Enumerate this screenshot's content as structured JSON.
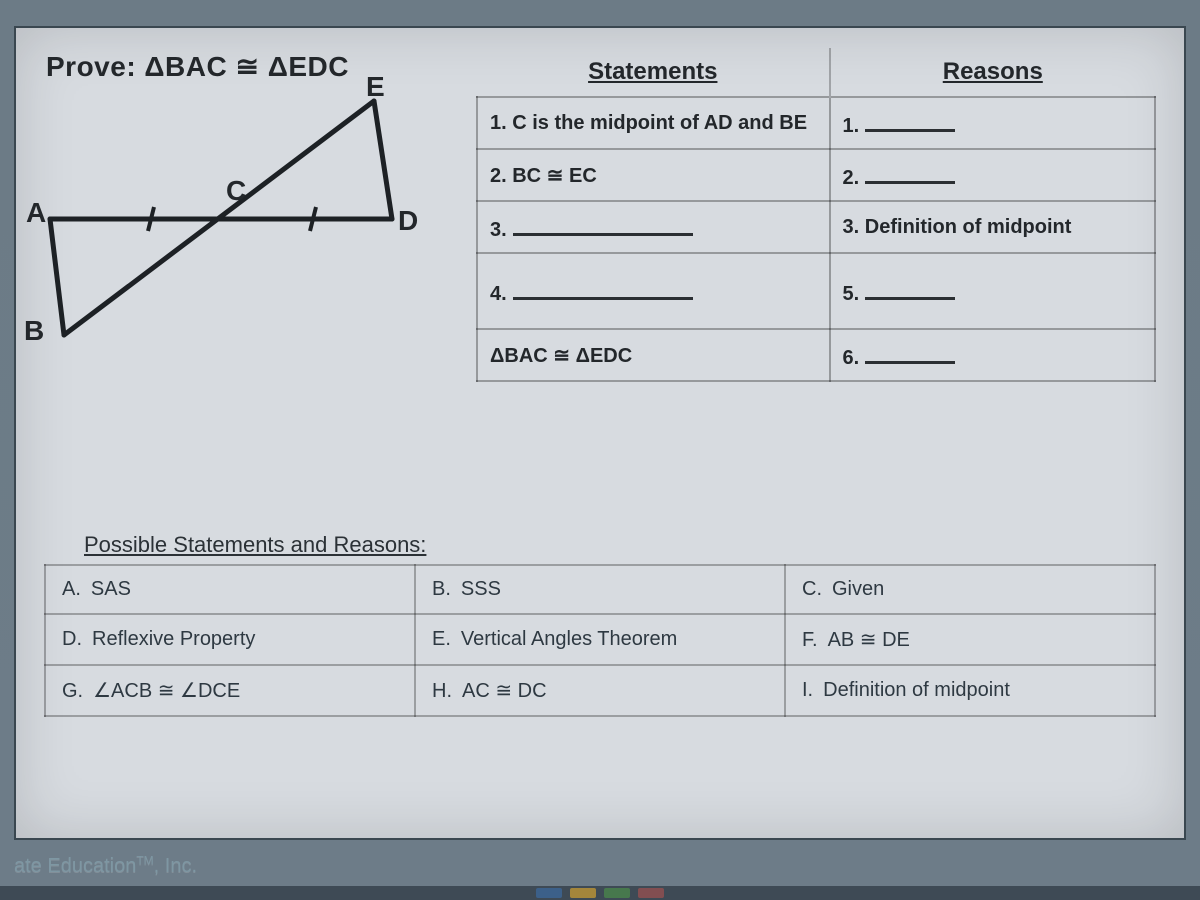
{
  "prove": "Prove:  ΔBAC ≅ ΔEDC",
  "diagram": {
    "A": "A",
    "B": "B",
    "C": "C",
    "D": "D",
    "E": "E",
    "stroke": "#1d2125",
    "stroke_width": 5
  },
  "table": {
    "headers": {
      "statements": "Statements",
      "reasons": "Reasons"
    },
    "rows": [
      {
        "stmt": "1.   C is the midpoint of AD and BE",
        "reason_prefix": "1.",
        "reason_blank": true
      },
      {
        "stmt": "2.  BC ≅ EC",
        "reason_prefix": "2.",
        "reason_blank": true
      },
      {
        "stmt_prefix": "3.",
        "stmt_blank": true,
        "reason": "3. Definition of midpoint"
      },
      {
        "stmt_prefix": "4.",
        "stmt_blank": true,
        "reason_prefix": "5.",
        "reason_blank": true,
        "tall": true
      },
      {
        "stmt": "      ΔBAC ≅ ΔEDC",
        "reason_prefix": "6.",
        "reason_blank": true
      }
    ]
  },
  "possible": {
    "header": "Possible Statements and Reasons:",
    "options": [
      [
        {
          "letter": "A.",
          "text": "SAS"
        },
        {
          "letter": "B.",
          "text": "SSS"
        },
        {
          "letter": "C.",
          "text": "Given"
        }
      ],
      [
        {
          "letter": "D.",
          "text": "Reflexive Property"
        },
        {
          "letter": "E.",
          "text": "Vertical Angles Theorem"
        },
        {
          "letter": "F.",
          "text": "AB ≅ DE"
        }
      ],
      [
        {
          "letter": "G.",
          "text": "∠ACB ≅ ∠DCE"
        },
        {
          "letter": "H.",
          "text": "AC ≅ DC"
        },
        {
          "letter": "I.",
          "text": "Definition of midpoint"
        }
      ]
    ]
  },
  "footer": "ate Education™, Inc.",
  "colors": {
    "page_bg": "#d7dbe0",
    "outer_bg": "#6a7a86",
    "border": "#3a4750",
    "text": "#23272b"
  },
  "taskbar_colors": [
    "#3c6aa0",
    "#d0a030",
    "#4c8c4a",
    "#a05050"
  ]
}
